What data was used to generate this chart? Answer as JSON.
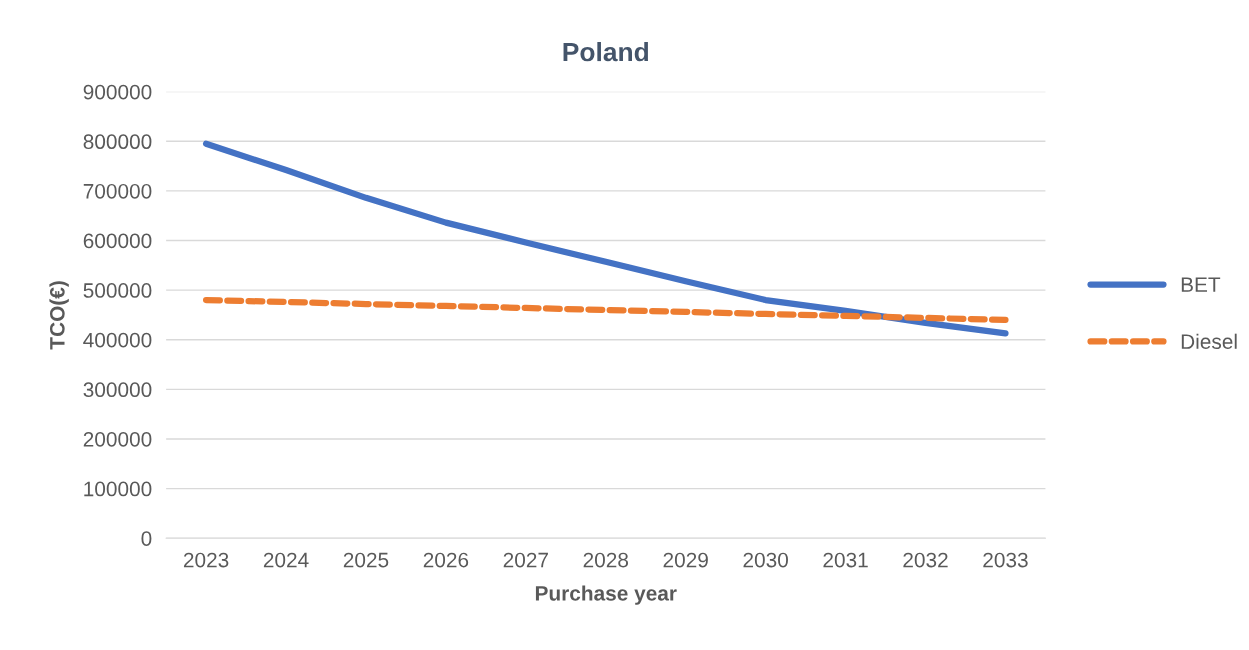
{
  "chart_data": {
    "type": "line",
    "title": "Poland",
    "xlabel": "Purchase year",
    "ylabel": "TCO(€)",
    "categories": [
      "2023",
      "2024",
      "2025",
      "2026",
      "2027",
      "2028",
      "2029",
      "2030",
      "2031",
      "2032",
      "2033"
    ],
    "series": [
      {
        "name": "BET",
        "color": "#4472c4",
        "line_style": "solid",
        "values": [
          795000,
          742000,
          686000,
          636000,
          596000,
          557000,
          518000,
          480000,
          458000,
          434000,
          413000
        ]
      },
      {
        "name": "Diesel",
        "color": "#ed7d31",
        "line_style": "dashed",
        "values": [
          480000,
          476000,
          472000,
          468000,
          464000,
          460000,
          456000,
          452000,
          448000,
          444000,
          440000
        ]
      }
    ],
    "ylim": [
      0,
      900000
    ],
    "yticks": [
      0,
      100000,
      200000,
      300000,
      400000,
      500000,
      600000,
      700000,
      800000,
      900000
    ],
    "grid": "y",
    "legend": "right",
    "marker": "none"
  }
}
